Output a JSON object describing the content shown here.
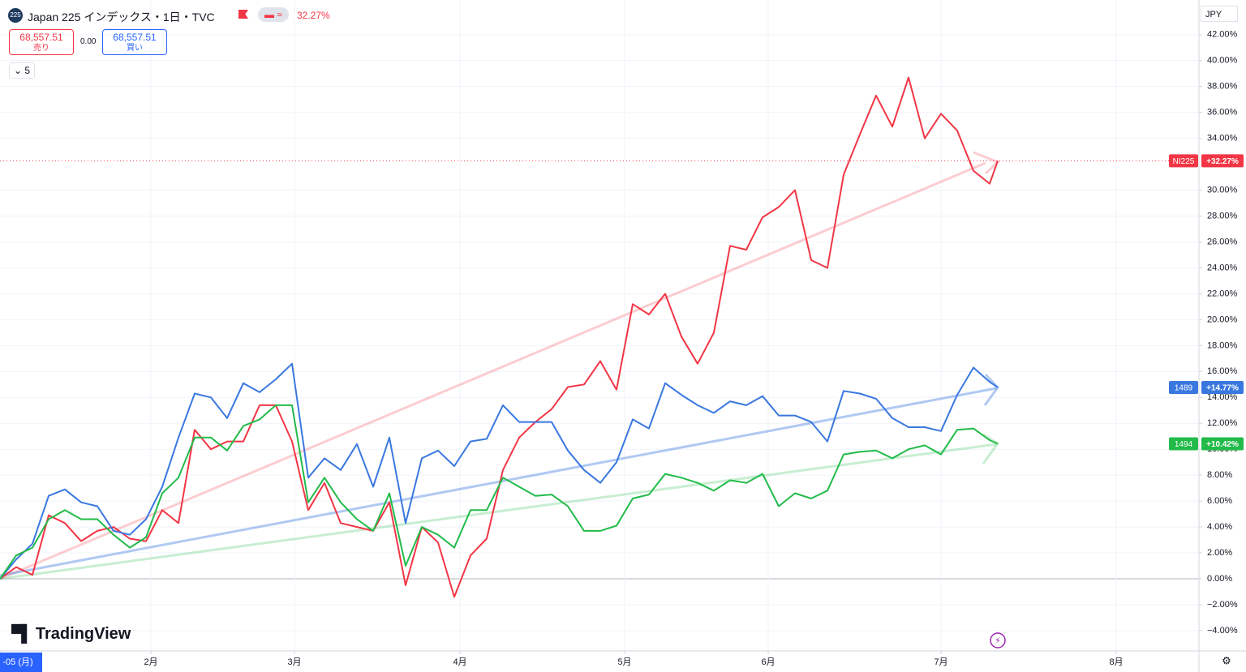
{
  "header": {
    "title": "Japan 225 インデックス・1日・TVC",
    "change": "32.27%",
    "sell_price": "68,557.51",
    "sell_label": "売り",
    "spread": "0.00",
    "buy_price": "68,557.51",
    "buy_label": "買い",
    "interval_count": "5",
    "currency": "JPY",
    "watermark": "TradingView"
  },
  "chart_data": {
    "type": "line",
    "x": [
      0,
      2,
      4,
      6,
      8,
      10,
      12,
      14,
      16,
      18,
      20,
      22,
      24,
      26,
      28,
      30,
      32,
      34,
      36,
      38,
      40,
      42,
      44,
      46,
      48,
      50,
      52,
      54,
      56,
      58,
      60,
      62,
      64,
      66,
      68,
      70,
      72,
      74,
      76,
      78,
      80,
      82,
      84,
      86,
      88,
      90,
      92,
      94,
      96,
      98,
      100,
      102,
      104,
      106,
      108,
      110,
      112,
      114,
      116,
      118,
      120,
      122,
      123
    ],
    "xlim": [
      0,
      147.8
    ],
    "xticks": [
      {
        "value": 0,
        "label": "-05 (月)"
      },
      {
        "value": 18.6,
        "label": "2月"
      },
      {
        "value": 36.3,
        "label": "3月"
      },
      {
        "value": 56.7,
        "label": "4月"
      },
      {
        "value": 77,
        "label": "5月"
      },
      {
        "value": 94.7,
        "label": "6月"
      },
      {
        "value": 116,
        "label": "7月"
      },
      {
        "value": 137.6,
        "label": "8月"
      }
    ],
    "ylim": [
      -5.57,
      44.68
    ],
    "yticks": [
      {
        "value": -4,
        "label": "−4.00%"
      },
      {
        "value": -2,
        "label": "−2.00%"
      },
      {
        "value": 0,
        "label": "0.00%"
      },
      {
        "value": 2,
        "label": "2.00%"
      },
      {
        "value": 4,
        "label": "4.00%"
      },
      {
        "value": 6,
        "label": "6.00%"
      },
      {
        "value": 8,
        "label": "8.00%"
      },
      {
        "value": 10,
        "label": "10.00%"
      },
      {
        "value": 12,
        "label": "12.00%"
      },
      {
        "value": 14,
        "label": "14.00%"
      },
      {
        "value": 16,
        "label": "16.00%"
      },
      {
        "value": 18,
        "label": "18.00%"
      },
      {
        "value": 20,
        "label": "20.00%"
      },
      {
        "value": 22,
        "label": "22.00%"
      },
      {
        "value": 24,
        "label": "24.00%"
      },
      {
        "value": 26,
        "label": "26.00%"
      },
      {
        "value": 28,
        "label": "28.00%"
      },
      {
        "value": 30,
        "label": "30.00%"
      },
      {
        "value": 34,
        "label": "34.00%"
      },
      {
        "value": 36,
        "label": "36.00%"
      },
      {
        "value": 38,
        "label": "38.00%"
      },
      {
        "value": 40,
        "label": "40.00%"
      },
      {
        "value": 42,
        "label": "42.00%"
      }
    ],
    "grid": true,
    "series": [
      {
        "name": "NI225",
        "color": "#f23645",
        "end_label": "+32.27%",
        "values": [
          0,
          0.9,
          0.3,
          4.9,
          4.3,
          2.9,
          3.7,
          4.0,
          3.1,
          2.9,
          5.3,
          4.3,
          11.5,
          10.0,
          10.6,
          10.6,
          13.4,
          13.4,
          10.6,
          5.3,
          7.4,
          4.3,
          4.0,
          3.7,
          5.9,
          -0.5,
          4.0,
          2.8,
          -1.4,
          1.8,
          3.1,
          8.4,
          10.9,
          12.1,
          13.1,
          14.8,
          15.0,
          16.8,
          14.6,
          21.2,
          20.4,
          22.0,
          18.7,
          16.6,
          19.0,
          25.7,
          25.4,
          27.9,
          28.7,
          30.0,
          24.6,
          24.0,
          31.2,
          34.3,
          37.3,
          34.9,
          38.7,
          34.0,
          35.9,
          34.6,
          31.5,
          30.5,
          32.27
        ]
      },
      {
        "name": "1489",
        "color": "#3a78e0",
        "end_label": "+14.77%",
        "values": [
          0,
          1.5,
          2.7,
          6.4,
          6.9,
          5.9,
          5.6,
          3.7,
          3.4,
          4.6,
          7.1,
          10.9,
          14.3,
          14.0,
          12.4,
          15.1,
          14.4,
          15.4,
          16.6,
          7.8,
          9.3,
          8.4,
          10.4,
          7.1,
          10.9,
          4.3,
          9.3,
          9.9,
          8.7,
          10.6,
          10.8,
          13.4,
          12.1,
          12.1,
          12.1,
          9.9,
          8.4,
          7.4,
          9.0,
          12.3,
          11.6,
          15.1,
          14.2,
          13.4,
          12.8,
          13.7,
          13.4,
          14.1,
          12.6,
          12.6,
          12.1,
          10.6,
          14.5,
          14.3,
          13.9,
          12.4,
          11.7,
          11.7,
          11.4,
          14.2,
          16.3,
          15.2,
          14.77
        ]
      },
      {
        "name": "1494",
        "color": "#22bb4a",
        "end_label": "+10.42%",
        "values": [
          0,
          1.8,
          2.4,
          4.6,
          5.3,
          4.6,
          4.6,
          3.4,
          2.4,
          3.2,
          6.6,
          7.8,
          10.9,
          10.9,
          9.9,
          11.8,
          12.3,
          13.4,
          13.4,
          5.9,
          7.8,
          5.9,
          4.6,
          3.7,
          6.6,
          1.0,
          4.0,
          3.4,
          2.4,
          5.3,
          5.3,
          7.8,
          7.1,
          6.4,
          6.5,
          5.6,
          3.7,
          3.7,
          4.1,
          6.2,
          6.5,
          8.1,
          7.8,
          7.4,
          6.8,
          7.6,
          7.4,
          8.1,
          5.6,
          6.6,
          6.2,
          6.8,
          9.6,
          9.8,
          9.9,
          9.3,
          10.0,
          10.3,
          9.6,
          11.5,
          11.6,
          10.7,
          10.42
        ]
      }
    ]
  }
}
